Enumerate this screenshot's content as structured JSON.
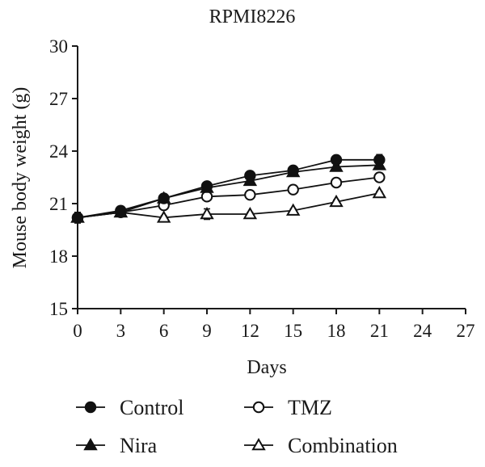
{
  "chart_data": {
    "type": "line",
    "title": "RPMI8226",
    "xlabel": "Days",
    "ylabel": "Mouse body weight (g)",
    "xlim": [
      0,
      27
    ],
    "ylim": [
      15,
      30
    ],
    "xticks": [
      0,
      3,
      6,
      9,
      12,
      15,
      18,
      21,
      24,
      27
    ],
    "yticks": [
      15,
      18,
      21,
      24,
      27,
      30
    ],
    "grid": false,
    "legend_position": "bottom",
    "x": [
      0,
      3,
      6,
      9,
      12,
      15,
      18,
      21
    ],
    "series": [
      {
        "name": "Control",
        "marker": "filled-circle",
        "values": [
          20.2,
          20.6,
          21.3,
          22.0,
          22.6,
          22.9,
          23.5,
          23.5
        ],
        "error": [
          0.3,
          0.1,
          0.1,
          0.1,
          0.1,
          0.1,
          0.1,
          0.3
        ]
      },
      {
        "name": "Nira",
        "marker": "filled-triangle",
        "values": [
          20.2,
          20.5,
          21.3,
          21.9,
          22.3,
          22.8,
          23.1,
          23.2
        ],
        "error": [
          0.3,
          0.1,
          0.1,
          0.1,
          0.1,
          0.1,
          0.1,
          0.2
        ]
      },
      {
        "name": "TMZ",
        "marker": "open-circle",
        "values": [
          20.2,
          20.5,
          20.9,
          21.4,
          21.5,
          21.8,
          22.2,
          22.5
        ],
        "error": [
          0.3,
          0.1,
          0.1,
          0.1,
          0.1,
          0.1,
          0.1,
          0.1
        ]
      },
      {
        "name": "Combination",
        "marker": "open-triangle",
        "values": [
          20.2,
          20.5,
          20.2,
          20.4,
          20.4,
          20.6,
          21.1,
          21.6
        ],
        "error": [
          0.3,
          0.1,
          0.1,
          0.3,
          0.1,
          0.1,
          0.1,
          0.1
        ]
      }
    ],
    "legend_order": [
      "Control",
      "TMZ",
      "Nira",
      "Combination"
    ]
  }
}
